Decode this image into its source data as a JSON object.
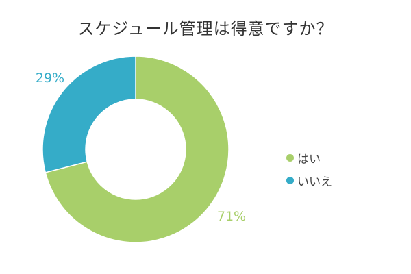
{
  "chart_data": {
    "type": "pie",
    "title": "スケジュール管理は得意ですか？",
    "categories": [
      "はい",
      "いいえ"
    ],
    "values": [
      71,
      29
    ],
    "value_labels": [
      "71%",
      "29%"
    ],
    "colors": [
      "#a8cf6a",
      "#35acc8"
    ],
    "donut": true,
    "legend_position": "right"
  }
}
